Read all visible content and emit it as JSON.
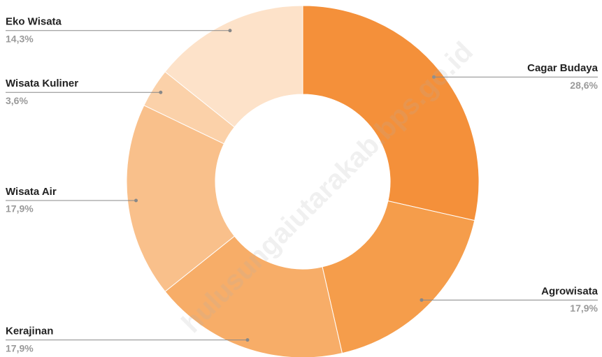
{
  "watermark": "hulusungaiutarakab.bps.go.id",
  "chart_data": {
    "type": "donut",
    "categories": [
      "Cagar Budaya",
      "Agrowisata",
      "Kerajinan",
      "Wisata Air",
      "Wisata Kuliner",
      "Eko Wisata"
    ],
    "values": [
      28.6,
      17.9,
      17.9,
      17.9,
      3.6,
      14.3
    ],
    "value_labels": [
      "28,6%",
      "17,9%",
      "17,9%",
      "17,9%",
      "3,6%",
      "14,3%"
    ],
    "colors": [
      "#f4903a",
      "#f59d4b",
      "#f7ad68",
      "#f9c08b",
      "#fbd1a9",
      "#fde2c9"
    ]
  }
}
